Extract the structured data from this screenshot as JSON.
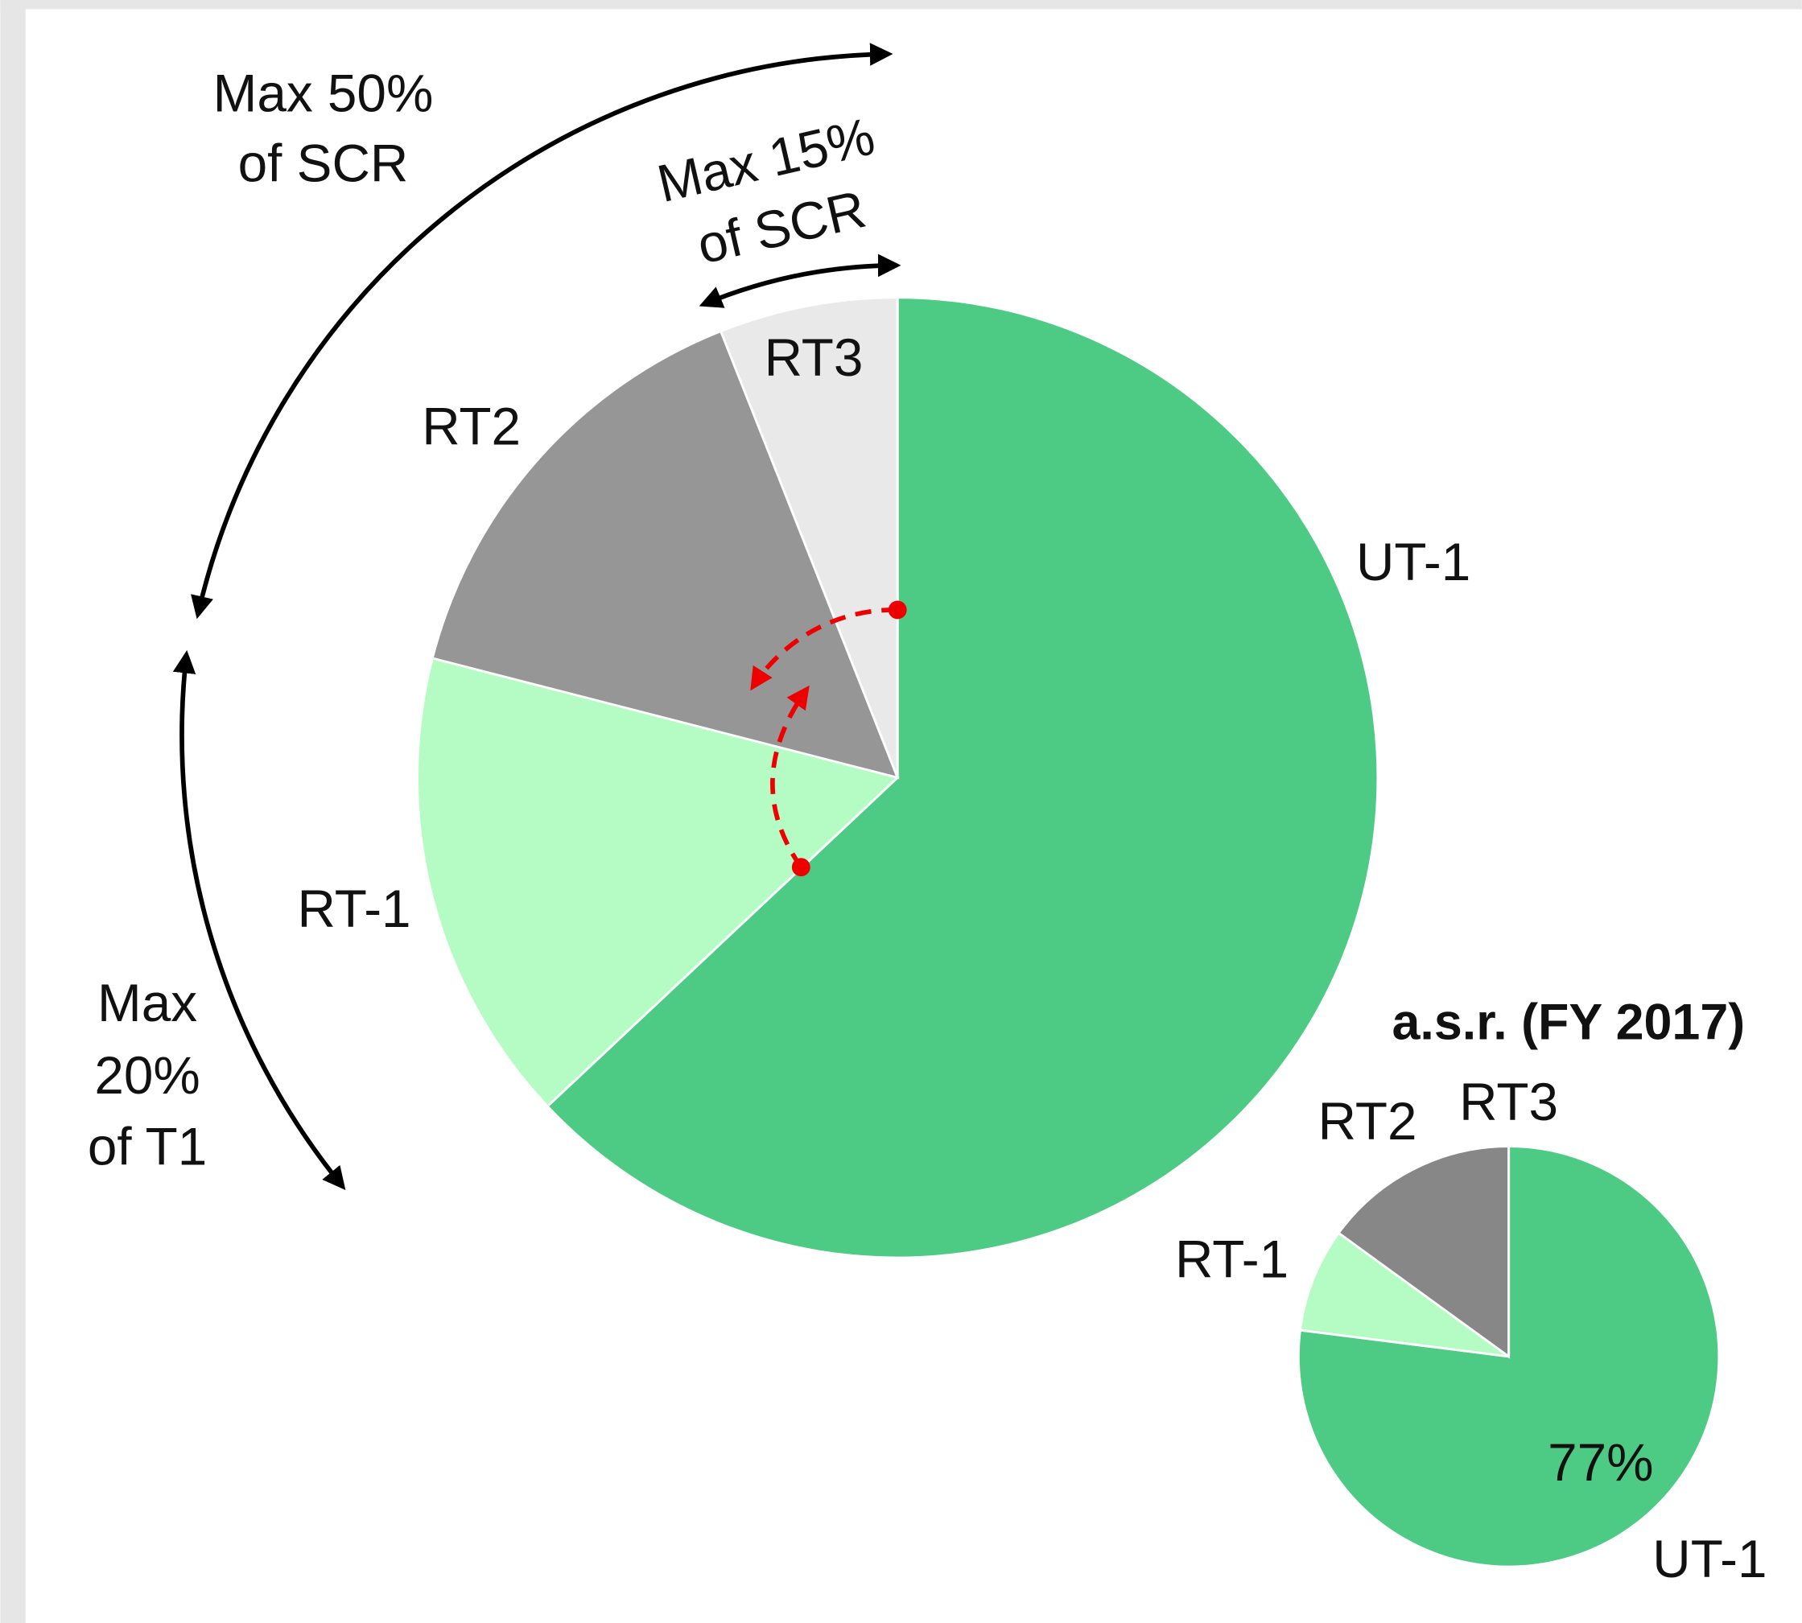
{
  "chart_data": [
    {
      "type": "pie",
      "categories": [
        "UT-1",
        "RT-1",
        "RT2",
        "RT3"
      ],
      "values": [
        63,
        16,
        15,
        6
      ],
      "colors": [
        "#4dcb85",
        "#b5fcc4",
        "#969696",
        "#e9e9e9"
      ],
      "annotations": [
        [
          "Max 50%",
          "of SCR"
        ],
        [
          "Max 15%",
          "of SCR"
        ],
        [
          "Max",
          "20%",
          "of T1"
        ]
      ]
    },
    {
      "type": "pie",
      "title": "a.s.r. (FY 2017)",
      "categories": [
        "UT-1",
        "RT-1",
        "RT2",
        "RT3"
      ],
      "values": [
        77,
        8,
        15,
        0
      ],
      "value_labels": [
        "77%",
        null,
        null,
        null
      ],
      "colors": [
        "#4dcb85",
        "#b5fcc4",
        "#878787",
        "#e9e9e9"
      ]
    }
  ]
}
